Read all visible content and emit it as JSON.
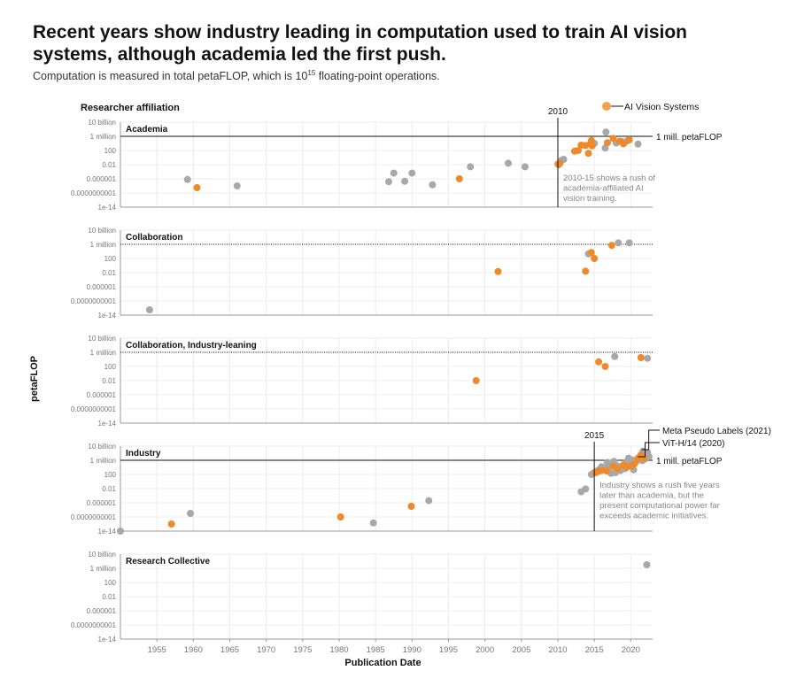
{
  "header": {
    "title": "Recent years show industry leading in computation used to train AI vision systems, although academia led the first push.",
    "subtitle_pre": "Computation is measured in total ",
    "subtitle_unit": "petaFLOP",
    "subtitle_mid": ", which is 10",
    "subtitle_exp": "15",
    "subtitle_post": " floating-point operations."
  },
  "chart_data": {
    "type": "scatter",
    "facet_title": "Researcher affiliation",
    "xlabel": "Publication Date",
    "ylabel": "petaFLOP",
    "xlim": [
      1950,
      2023
    ],
    "ylim_log10": [
      -14,
      10
    ],
    "y_scale": "log",
    "grid": true,
    "x_ticks": [
      1955,
      1960,
      1965,
      1970,
      1975,
      1980,
      1985,
      1990,
      1995,
      2000,
      2005,
      2010,
      2015,
      2020
    ],
    "x_tick_labels": [
      "1955",
      "1960",
      "1965",
      "1970",
      "1975",
      "1980",
      "1985",
      "1990",
      "1995",
      "2000",
      "2005",
      "2010",
      "2015",
      "2020"
    ],
    "y_ticks_log10": [
      10,
      6,
      2,
      -2,
      -6,
      -10,
      -14
    ],
    "y_tick_labels": [
      "10 billion",
      "1 million",
      "100",
      "0.01",
      "0.000001",
      "0.0000000001",
      "1e-14"
    ],
    "legend": {
      "label": "AI Vision Systems",
      "color": "#f0a050",
      "position": "top-right"
    },
    "colors": {
      "vision": "#ef8a2c",
      "other": "#a8a8a8",
      "other_dark": "#888888"
    },
    "facets": [
      {
        "name": "Academia",
        "ref_line": {
          "log10": 6,
          "style": "solid",
          "label": "1 mill. petaFLOP"
        },
        "vline": {
          "x": 2010,
          "label": "2010"
        },
        "annotation": [
          "2010-15 shows a rush of",
          "academia-affiliated AI",
          "vision training."
        ],
        "points_other": [
          [
            1959.2,
            -6.2
          ],
          [
            1966.0,
            -8.0
          ],
          [
            1986.8,
            -6.8
          ],
          [
            1987.5,
            -4.4
          ],
          [
            1989.0,
            -6.7
          ],
          [
            1990.0,
            -4.4
          ],
          [
            1992.8,
            -7.7
          ],
          [
            1998.0,
            -2.6
          ],
          [
            2003.2,
            -1.6
          ],
          [
            2005.5,
            -2.6
          ],
          [
            2010.0,
            -1.8
          ],
          [
            2010.5,
            -0.8
          ],
          [
            2010.8,
            -0.5
          ],
          [
            2016.5,
            2.7
          ],
          [
            2016.6,
            7.2
          ],
          [
            2018.0,
            4.1
          ],
          [
            2018.8,
            4.5
          ],
          [
            2019.5,
            4.7
          ],
          [
            2021.0,
            3.8
          ],
          [
            2015.0,
            4.0
          ]
        ],
        "points_vision": [
          [
            1960.5,
            -8.5
          ],
          [
            1996.5,
            -6.0
          ],
          [
            2010.1,
            -2.0
          ],
          [
            2010.3,
            -1.6
          ],
          [
            2012.3,
            1.8
          ],
          [
            2012.8,
            2.0
          ],
          [
            2013.2,
            3.5
          ],
          [
            2013.8,
            3.4
          ],
          [
            2014.2,
            1.2
          ],
          [
            2014.5,
            4.0
          ],
          [
            2014.6,
            4.8
          ],
          [
            2014.7,
            3.3
          ],
          [
            2016.8,
            4.2
          ],
          [
            2017.6,
            5.4
          ],
          [
            2018.5,
            4.6
          ],
          [
            2019.0,
            3.9
          ],
          [
            2019.8,
            5.0
          ]
        ]
      },
      {
        "name": "Collaboration",
        "ref_line": {
          "log10": 6,
          "style": "dotted"
        },
        "points_other": [
          [
            1954.0,
            -12.5
          ],
          [
            2014.2,
            3.3
          ],
          [
            2018.3,
            6.4
          ],
          [
            2019.8,
            6.4
          ]
        ],
        "points_vision": [
          [
            2001.8,
            -1.7
          ],
          [
            2013.8,
            -1.6
          ],
          [
            2014.6,
            3.7
          ],
          [
            2015.0,
            2.0
          ],
          [
            2017.4,
            5.7
          ]
        ]
      },
      {
        "name": "Collaboration, Industry-leaning",
        "ref_line": {
          "log10": 6,
          "style": "dotted"
        },
        "points_other": [
          [
            2017.8,
            4.8
          ],
          [
            2022.3,
            4.3
          ]
        ],
        "points_vision": [
          [
            1998.8,
            -2.0
          ],
          [
            2015.6,
            3.3
          ],
          [
            2016.5,
            2.0
          ],
          [
            2021.4,
            4.5
          ]
        ]
      },
      {
        "name": "Industry",
        "ref_line": {
          "log10": 6,
          "style": "solid",
          "label": "1 mill. petaFLOP"
        },
        "vline": {
          "x": 2015,
          "label": "2015"
        },
        "annotation": [
          "Industry shows a rush five years",
          "later than academia, but the",
          "present computational power far",
          "exceeds academic initiatives."
        ],
        "callouts": [
          {
            "text": "Meta Pseudo Labels (2021)",
            "x": 2021.5,
            "log10": 9.0
          },
          {
            "text": "ViT-H/14 (2020)",
            "x": 2021.0,
            "log10": 7.0
          }
        ],
        "points_other": [
          [
            1950.0,
            -14.0
          ],
          [
            1959.6,
            -9.0
          ],
          [
            1984.7,
            -11.7
          ],
          [
            1992.3,
            -5.4
          ],
          [
            2013.2,
            -2.9
          ],
          [
            2013.8,
            -2.1
          ],
          [
            2014.6,
            2.0
          ],
          [
            2015.0,
            2.5
          ],
          [
            2015.4,
            3.0
          ],
          [
            2015.7,
            3.4
          ],
          [
            2016.0,
            4.2
          ],
          [
            2016.4,
            3.7
          ],
          [
            2016.8,
            5.4
          ],
          [
            2017.1,
            4.0
          ],
          [
            2017.3,
            2.3
          ],
          [
            2017.5,
            5.4
          ],
          [
            2017.7,
            5.7
          ],
          [
            2017.9,
            2.5
          ],
          [
            2018.2,
            4.4
          ],
          [
            2018.6,
            3.1
          ],
          [
            2019.0,
            4.6
          ],
          [
            2019.2,
            3.6
          ],
          [
            2019.5,
            5.7
          ],
          [
            2019.7,
            6.6
          ],
          [
            2019.9,
            5.1
          ],
          [
            2020.2,
            6.1
          ],
          [
            2020.4,
            3.3
          ],
          [
            2020.7,
            5.5
          ],
          [
            2021.0,
            6.6
          ],
          [
            2021.3,
            7.2
          ],
          [
            2021.6,
            5.9
          ],
          [
            2021.9,
            6.9
          ],
          [
            2022.1,
            7.7
          ],
          [
            2022.3,
            8.2
          ],
          [
            2022.5,
            7.0
          ],
          [
            2021.7,
            8.6
          ],
          [
            2022.0,
            6.4
          ]
        ],
        "points_vision": [
          [
            1957.0,
            -12.0
          ],
          [
            1980.2,
            -10.0
          ],
          [
            1989.9,
            -7.0
          ],
          [
            2015.2,
            2.5
          ],
          [
            2015.6,
            2.9
          ],
          [
            2016.0,
            3.1
          ],
          [
            2016.7,
            3.0
          ],
          [
            2017.6,
            4.3
          ],
          [
            2018.2,
            3.6
          ],
          [
            2019.0,
            4.7
          ],
          [
            2019.5,
            4.1
          ],
          [
            2020.0,
            4.3
          ],
          [
            2020.5,
            5.0
          ],
          [
            2021.0,
            6.4
          ],
          [
            2021.4,
            7.5
          ],
          [
            2021.8,
            6.6
          ]
        ]
      },
      {
        "name": "Research Collective",
        "points_other": [
          [
            2022.2,
            7.0
          ]
        ],
        "points_vision": []
      }
    ]
  }
}
